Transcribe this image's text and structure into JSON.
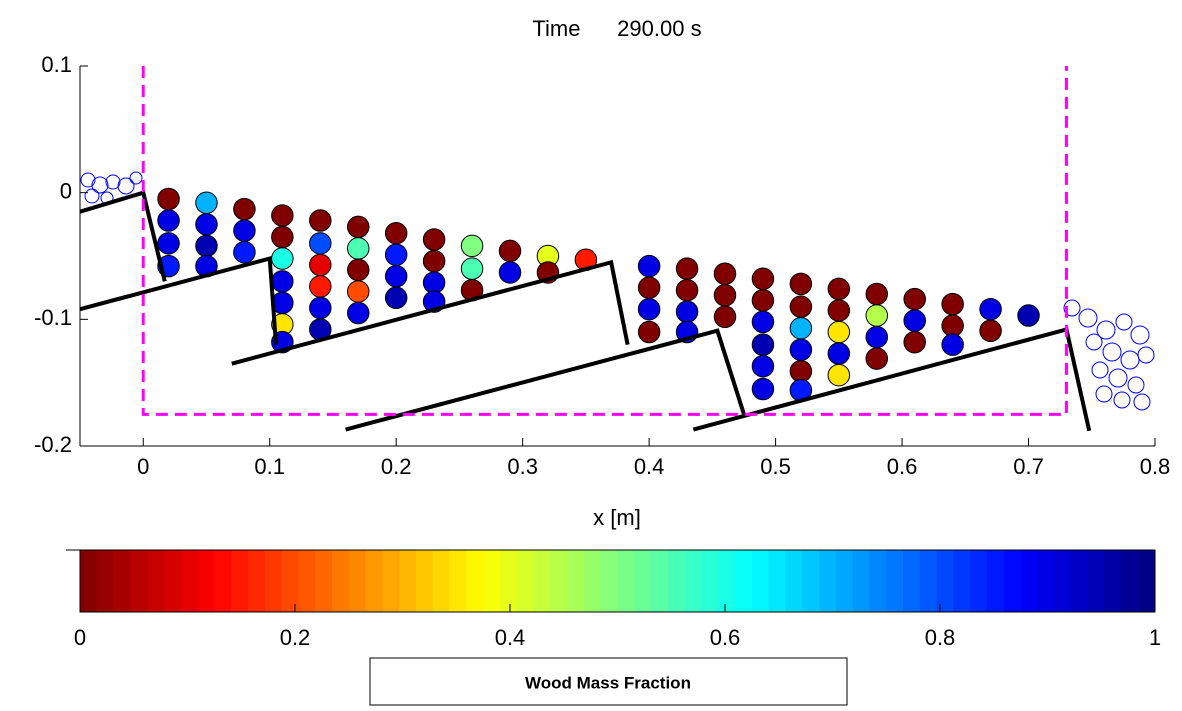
{
  "chart_data": {
    "type": "particles",
    "title": "Time      290.00 s",
    "xlabel": "x [m]",
    "xlim": [
      -0.05,
      0.8
    ],
    "ylim": [
      -0.2,
      0.1
    ],
    "xticks": [
      0,
      0.1,
      0.2,
      0.3,
      0.4,
      0.5,
      0.6,
      0.7,
      0.8
    ],
    "yticks": [
      -0.2,
      -0.1,
      0,
      0.1
    ],
    "domain_box": {
      "x": [
        0,
        0.73
      ],
      "y": [
        -0.175,
        0.1
      ],
      "color": "#ff00ff"
    },
    "walls": [
      {
        "x": [
          -0.05,
          0,
          0.017
        ],
        "y": [
          -0.015,
          0,
          -0.07
        ]
      },
      {
        "x": [
          -0.05,
          0.1,
          0.105
        ],
        "y": [
          -0.092,
          -0.052,
          -0.12
        ]
      },
      {
        "x": [
          0.07,
          0.37,
          0.383
        ],
        "y": [
          -0.135,
          -0.055,
          -0.12
        ]
      },
      {
        "x": [
          0.16,
          0.454,
          0.475
        ],
        "y": [
          -0.187,
          -0.109,
          -0.175
        ]
      },
      {
        "x": [
          0.435,
          0.73,
          0.748
        ],
        "y": [
          -0.187,
          -0.108,
          -0.188
        ]
      }
    ],
    "particle_radius": 0.0085,
    "particles": {
      "x": [
        0.02,
        0.02,
        0.02,
        0.02,
        0.05,
        0.05,
        0.05,
        0.05,
        0.08,
        0.08,
        0.08,
        0.11,
        0.11,
        0.11,
        0.11,
        0.11,
        0.11,
        0.11,
        0.14,
        0.14,
        0.14,
        0.14,
        0.14,
        0.14,
        0.17,
        0.17,
        0.17,
        0.17,
        0.17,
        0.2,
        0.2,
        0.2,
        0.2,
        0.23,
        0.23,
        0.23,
        0.23,
        0.26,
        0.26,
        0.26,
        0.29,
        0.29,
        0.32,
        0.32,
        0.35,
        0.4,
        0.4,
        0.4,
        0.4,
        0.43,
        0.43,
        0.43,
        0.43,
        0.46,
        0.46,
        0.46,
        0.49,
        0.49,
        0.49,
        0.49,
        0.49,
        0.49,
        0.52,
        0.52,
        0.52,
        0.52,
        0.52,
        0.52,
        0.55,
        0.55,
        0.55,
        0.55,
        0.55,
        0.58,
        0.58,
        0.58,
        0.58,
        0.61,
        0.61,
        0.61,
        0.64,
        0.64,
        0.64,
        0.67,
        0.67,
        0.7
      ],
      "y": [
        -0.005,
        -0.022,
        -0.04,
        -0.058,
        -0.008,
        -0.025,
        -0.042,
        -0.058,
        -0.013,
        -0.03,
        -0.047,
        -0.018,
        -0.035,
        -0.052,
        -0.07,
        -0.087,
        -0.104,
        -0.118,
        -0.022,
        -0.04,
        -0.057,
        -0.074,
        -0.091,
        -0.108,
        -0.027,
        -0.044,
        -0.061,
        -0.078,
        -0.095,
        -0.032,
        -0.049,
        -0.066,
        -0.083,
        -0.037,
        -0.054,
        -0.071,
        -0.086,
        -0.042,
        -0.06,
        -0.077,
        -0.046,
        -0.063,
        -0.05,
        -0.063,
        -0.053,
        -0.058,
        -0.075,
        -0.092,
        -0.11,
        -0.06,
        -0.077,
        -0.094,
        -0.11,
        -0.064,
        -0.081,
        -0.098,
        -0.068,
        -0.085,
        -0.102,
        -0.12,
        -0.137,
        -0.155,
        -0.072,
        -0.09,
        -0.107,
        -0.124,
        -0.141,
        -0.156,
        -0.076,
        -0.093,
        -0.11,
        -0.127,
        -0.144,
        -0.08,
        -0.097,
        -0.114,
        -0.131,
        -0.084,
        -0.101,
        -0.118,
        -0.088,
        -0.105,
        -0.12,
        -0.092,
        -0.109,
        -0.097
      ],
      "fraction": [
        0,
        0.9,
        0.9,
        0.85,
        0.7,
        0.9,
        0.95,
        0.9,
        0,
        0.9,
        0.85,
        0,
        0,
        0.6,
        0.9,
        0.9,
        0.35,
        0.9,
        0,
        0.8,
        0.1,
        0.15,
        0.9,
        0.95,
        0,
        0.55,
        0,
        0.2,
        0.9,
        0,
        0.85,
        0.9,
        0.95,
        0,
        0,
        0.9,
        0.9,
        0.5,
        0.55,
        0,
        0,
        0.9,
        0.4,
        0,
        0.15,
        0.9,
        0,
        0.9,
        0,
        0,
        0,
        0.9,
        0.9,
        0,
        0,
        0,
        0,
        0,
        0.9,
        0.95,
        0.9,
        0.9,
        0,
        0,
        0.7,
        0.9,
        0,
        0.85,
        0,
        0,
        0.35,
        0.9,
        0.35,
        0,
        0.45,
        0.9,
        0,
        0,
        0.9,
        0,
        0,
        0,
        0.9,
        0.9,
        0,
        0.95
      ]
    },
    "clim": [
      0,
      1
    ],
    "cticks": [
      0,
      0.2,
      0.4,
      0.6,
      0.8,
      1
    ],
    "colorbar_label": "Wood Mass Fraction"
  }
}
